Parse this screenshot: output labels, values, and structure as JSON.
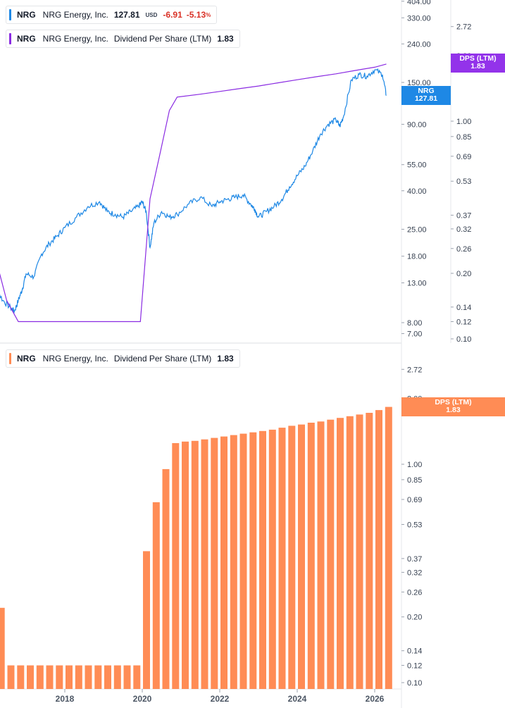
{
  "legends": {
    "price": {
      "ticker": "NRG",
      "name": "NRG Energy, Inc.",
      "value": "127.81",
      "currency": "USD",
      "change": "-6.91",
      "change_pct": "-5.13",
      "pct_sign": "%",
      "color": "#1e88e5"
    },
    "dps_top": {
      "ticker": "NRG",
      "name": "NRG Energy, Inc.",
      "metric": "Dividend Per Share (LTM)",
      "value": "1.83",
      "color": "#8a2be2"
    },
    "dps_bottom": {
      "ticker": "NRG",
      "name": "NRG Energy, Inc.",
      "metric": "Dividend Per Share (LTM)",
      "value": "1.83",
      "color": "#ff8c55"
    }
  },
  "tags": {
    "nrg_price": {
      "line1": "NRG",
      "line2": "127.81",
      "color": "#1e88e5"
    },
    "dps_top": {
      "line1": "DPS (LTM)",
      "line2": "1.83",
      "color": "#9333ea"
    },
    "dps_bottom": {
      "line1": "DPS (LTM)",
      "line2": "1.83",
      "color": "#ff8c55"
    }
  },
  "chart_data": [
    {
      "type": "line",
      "scale": "log",
      "price_axis_ticks": [
        "404.00",
        "330.00",
        "240.00",
        "150.00",
        "90.00",
        "55.00",
        "40.00",
        "25.00",
        "18.00",
        "13.00",
        "8.00",
        "7.00"
      ],
      "dps_axis_ticks": [
        "2.72",
        "2.00",
        "1.00",
        "0.85",
        "0.69",
        "0.53",
        "0.37",
        "0.32",
        "0.26",
        "0.20",
        "0.14",
        "0.12",
        "0.10"
      ],
      "series": [
        {
          "name": "NRG",
          "color": "#1e88e5",
          "x": [
            2016.0,
            2016.2,
            2016.4,
            2016.6,
            2016.7,
            2016.8,
            2016.9,
            2017.0,
            2017.2,
            2017.4,
            2017.6,
            2017.8,
            2018.0,
            2018.3,
            2018.6,
            2018.9,
            2019.1,
            2019.3,
            2019.5,
            2019.7,
            2019.9,
            2020.0,
            2020.1,
            2020.2,
            2020.3,
            2020.5,
            2020.7,
            2020.9,
            2021.2,
            2021.5,
            2021.8,
            2022.0,
            2022.2,
            2022.4,
            2022.6,
            2022.8,
            2022.9,
            2023.0,
            2023.2,
            2023.4,
            2023.6,
            2023.8,
            2024.0,
            2024.2,
            2024.4,
            2024.6,
            2024.8,
            2025.0,
            2025.1,
            2025.2,
            2025.4,
            2025.6,
            2025.8,
            2026.0,
            2026.2,
            2026.3
          ],
          "values": [
            13,
            12.5,
            10.5,
            9.6,
            9.2,
            10.5,
            12,
            14.5,
            14,
            18.5,
            21,
            23,
            25.5,
            29,
            33,
            35,
            31,
            30,
            29,
            31,
            33,
            35,
            31,
            20,
            27,
            31,
            29,
            30,
            34,
            37,
            33,
            35,
            36,
            37,
            38,
            34,
            32,
            29,
            31,
            33,
            36,
            42,
            48,
            54,
            65,
            80,
            90,
            95,
            88,
            100,
            155,
            165,
            162,
            175,
            165,
            127.81
          ]
        },
        {
          "name": "DPS (LTM)",
          "color": "#8a2be2",
          "x": [
            2016.0,
            2016.2,
            2016.5,
            2016.8,
            2017.0,
            2018.0,
            2019.0,
            2019.95,
            2020.2,
            2020.45,
            2020.7,
            2020.9,
            2021.5,
            2022.0,
            2022.5,
            2023.0,
            2023.5,
            2024.0,
            2024.5,
            2025.0,
            2025.5,
            2026.0,
            2026.3
          ],
          "values": [
            0.33,
            0.24,
            0.15,
            0.12,
            0.12,
            0.12,
            0.12,
            0.12,
            0.44,
            0.7,
            1.12,
            1.29,
            1.33,
            1.37,
            1.41,
            1.45,
            1.5,
            1.55,
            1.6,
            1.65,
            1.71,
            1.77,
            1.83
          ]
        }
      ]
    },
    {
      "type": "bar",
      "scale": "log",
      "series_name": "Dividend Per Share (LTM)",
      "color": "#ff8c55",
      "dps_axis_ticks": [
        "2.72",
        "2.00",
        "1.00",
        "0.85",
        "0.69",
        "0.53",
        "0.37",
        "0.32",
        "0.26",
        "0.20",
        "0.14",
        "0.12",
        "0.10"
      ],
      "x_ticks": [
        "2018",
        "2020",
        "2022",
        "2024",
        "2026"
      ],
      "x": [
        2016.0,
        2016.25,
        2016.5,
        2016.75,
        2017.0,
        2017.25,
        2017.5,
        2017.75,
        2018.0,
        2018.25,
        2018.5,
        2018.75,
        2019.0,
        2019.25,
        2019.5,
        2019.75,
        2020.0,
        2020.25,
        2020.5,
        2020.75,
        2021.0,
        2021.25,
        2021.5,
        2021.75,
        2022.0,
        2022.25,
        2022.5,
        2022.75,
        2023.0,
        2023.25,
        2023.5,
        2023.75,
        2024.0,
        2024.25,
        2024.5,
        2024.75,
        2025.0,
        2025.25,
        2025.5,
        2025.75,
        2026.0,
        2026.25
      ],
      "values": [
        0.35,
        0.22,
        0.12,
        0.12,
        0.12,
        0.12,
        0.12,
        0.12,
        0.12,
        0.12,
        0.12,
        0.12,
        0.12,
        0.12,
        0.12,
        0.12,
        0.4,
        0.67,
        0.95,
        1.25,
        1.27,
        1.28,
        1.3,
        1.32,
        1.34,
        1.36,
        1.38,
        1.4,
        1.42,
        1.44,
        1.47,
        1.5,
        1.52,
        1.55,
        1.57,
        1.6,
        1.63,
        1.66,
        1.69,
        1.72,
        1.77,
        1.83
      ]
    }
  ]
}
